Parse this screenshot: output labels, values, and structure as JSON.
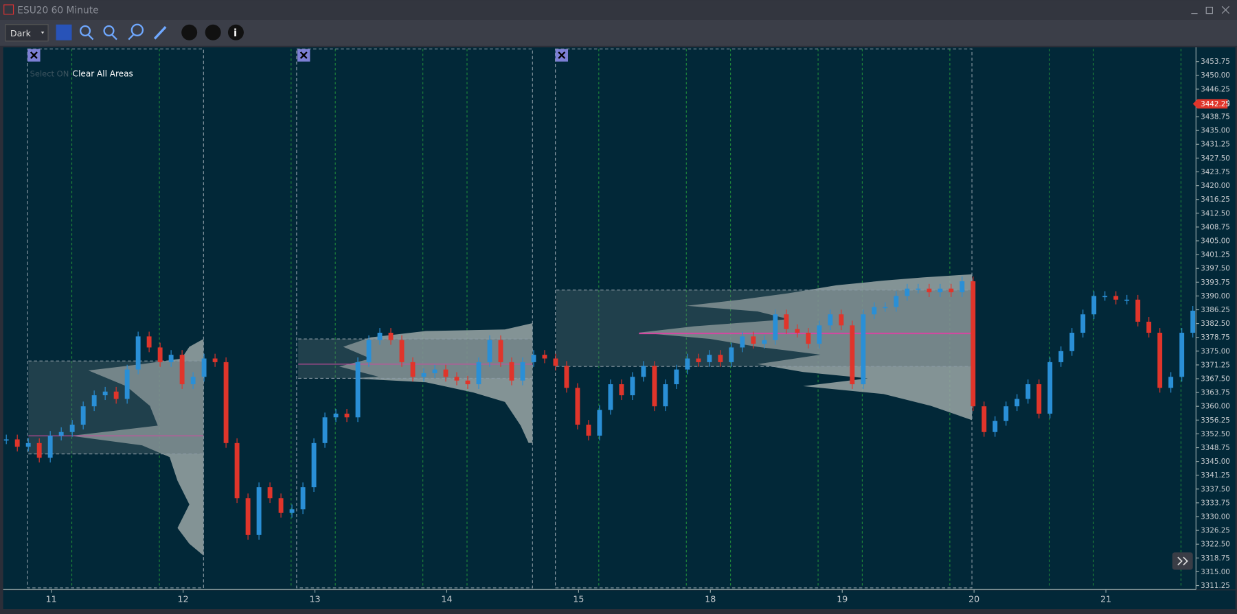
{
  "window": {
    "title": "ESU20 60 Minute"
  },
  "toolbar": {
    "theme": "Dark"
  },
  "overlay": {
    "select": "Select ON",
    "clear": "Clear All Areas"
  },
  "price_axis": {
    "ticks": [
      3453.75,
      {
        "value": 3450.0,
        "label": "3450.00"
      },
      3446.25,
      {
        "value": 3442.5,
        "label": "3442.50"
      },
      3438.75,
      {
        "value": 3435.0,
        "label": "3435.00"
      },
      3431.25,
      {
        "value": 3427.5,
        "label": "3427.50"
      },
      3423.75,
      {
        "value": 3420.0,
        "label": "3420.00"
      },
      3416.25,
      {
        "value": 3412.5,
        "label": "3412.50"
      },
      3408.75,
      {
        "value": 3405.0,
        "label": "3405.00"
      },
      3401.25,
      {
        "value": 3397.5,
        "label": "3397.50"
      },
      3393.75,
      {
        "value": 3390.0,
        "label": "3390.00"
      },
      3386.25,
      {
        "value": 3382.5,
        "label": "3382.50"
      },
      3378.75,
      {
        "value": 3375.0,
        "label": "3375.00"
      },
      3371.25,
      {
        "value": 3367.5,
        "label": "3367.50"
      },
      3363.75,
      {
        "value": 3360.0,
        "label": "3360.00"
      },
      3356.25,
      {
        "value": 3352.5,
        "label": "3352.50"
      },
      3348.75,
      {
        "value": 3345.0,
        "label": "3345.00"
      },
      3341.25,
      {
        "value": 3337.5,
        "label": "3337.50"
      },
      3333.75,
      {
        "value": 3330.0,
        "label": "3330.00"
      },
      3326.25,
      {
        "value": 3322.5,
        "label": "3322.50"
      },
      3318.75,
      {
        "value": 3315.0,
        "label": "3315.00"
      },
      3311.25
    ],
    "current": 3442.25
  },
  "time_axis": {
    "labels": [
      "11",
      "12",
      "13",
      "14",
      "15",
      "18",
      "19",
      "20",
      "21"
    ]
  },
  "candles": {
    "values": [
      3351,
      3349,
      3350,
      3346,
      3352,
      3353,
      3355,
      3360,
      3363,
      3364,
      3362,
      3370,
      3379,
      3376,
      3372,
      3374,
      3366,
      3368,
      3373,
      3372,
      3350,
      3335,
      3325,
      3338,
      3335,
      3331,
      3332,
      3338,
      3350,
      3357,
      3358,
      3357,
      3372,
      3378,
      3380,
      3378,
      3372,
      3368,
      3369,
      3370,
      3368,
      3367,
      3366,
      3372,
      3378,
      3372,
      3367,
      3372,
      3374,
      3373,
      3371,
      3365,
      3355,
      3352,
      3359,
      3366,
      3363,
      3368,
      3371,
      3360,
      3366,
      3370,
      3373,
      3372,
      3374,
      3372,
      3376,
      3379,
      3377,
      3378,
      3385,
      3381,
      3380,
      3377,
      3382,
      3385,
      3382,
      3366,
      3385,
      3387,
      3387,
      3390,
      3392,
      3392,
      3391,
      3392,
      3391,
      3394,
      3360,
      3353,
      3356,
      3360,
      3362,
      3366,
      3358,
      3372,
      3375,
      3380,
      3385,
      3390,
      3390,
      3389,
      3389,
      3383,
      3380,
      3365,
      3368,
      3380,
      3386
    ]
  }
}
